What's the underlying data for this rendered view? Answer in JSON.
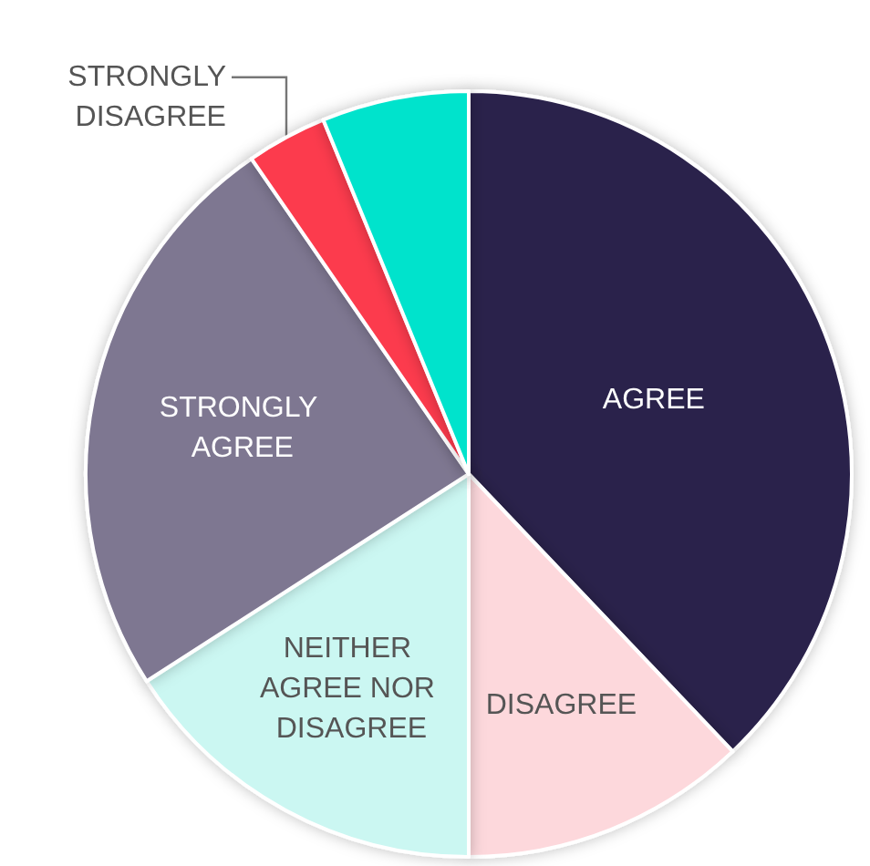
{
  "chart_data": {
    "type": "pie",
    "categories": [
      "AGREE",
      "DISAGREE",
      "NEITHER AGREE NOR DISAGREE",
      "STRONGLY AGREE",
      "STRONGLY DISAGREE",
      null
    ],
    "values": [
      37.9,
      12.1,
      15.9,
      24.5,
      3.4,
      6.2
    ],
    "colors": [
      "#2b224c",
      "#fdd8dc",
      "#cbf7f2",
      "#7e7791",
      "#fc3a4e",
      "#00e3cc"
    ]
  }
}
